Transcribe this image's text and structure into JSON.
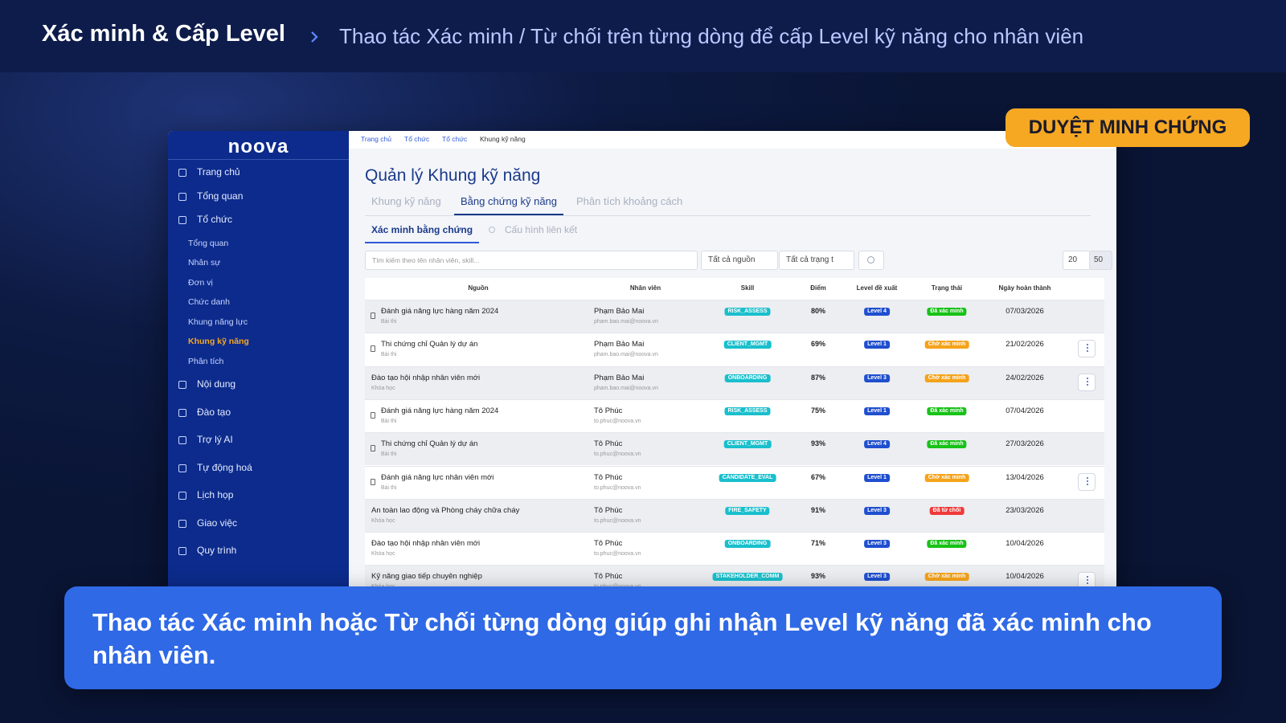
{
  "header": {
    "title": "Xác minh & Cấp Level",
    "subtitle": "Thao tác Xác minh / Từ chối trên từng dòng để cấp Level kỹ năng cho nhân viên"
  },
  "badge": "DUYỆT MINH CHỨNG",
  "app": {
    "logo": "noova",
    "sidebar": [
      {
        "label": "Trang chủ"
      },
      {
        "label": "Tổng quan"
      },
      {
        "label": "Tổ chức",
        "children": [
          {
            "label": "Tổng quan"
          },
          {
            "label": "Nhân sự"
          },
          {
            "label": "Đơn vị"
          },
          {
            "label": "Chức danh"
          },
          {
            "label": "Khung năng lực"
          },
          {
            "label": "Khung kỹ năng",
            "active": true
          },
          {
            "label": "Phân tích"
          }
        ]
      },
      {
        "label": "Nội dung"
      },
      {
        "label": "Đào tạo"
      },
      {
        "label": "Trợ lý AI"
      },
      {
        "label": "Tự động hoá"
      },
      {
        "label": "Lịch họp"
      },
      {
        "label": "Giao việc"
      },
      {
        "label": "Quy trình"
      }
    ],
    "breadcrumb": [
      "Trang chủ",
      "Tổ chức",
      "Tổ chức",
      "Khung kỹ năng"
    ],
    "page_title": "Quản lý Khung kỹ năng",
    "tabs": [
      {
        "label": "Khung kỹ năng"
      },
      {
        "label": "Bằng chứng kỹ năng",
        "active": true
      },
      {
        "label": "Phân tích khoảng cách"
      }
    ],
    "subtabs": [
      {
        "label": "Xác minh bằng chứng",
        "active": true
      },
      {
        "label": "Cấu hình liên kết"
      }
    ],
    "search_placeholder": "Tìm kiếm theo tên nhân viên, skill...",
    "filters": [
      "Tất cả nguồn",
      "Tất cả trạng t"
    ],
    "page_size": "20",
    "page_size_max": "50",
    "table": {
      "columns": [
        "Nguồn",
        "Nhân viên",
        "Skill",
        "Điểm",
        "Level đề xuất",
        "Trạng thái",
        "Ngày hoàn thành"
      ],
      "rows": [
        {
          "source": "Đánh giá năng lực hàng năm 2024",
          "source_type": "Bài thi",
          "icon": true,
          "employee": "Phạm Bảo Mai",
          "email": "pham.bao.mai@noova.vn",
          "skill": "RISK_ASSESS",
          "score": "80%",
          "level": "Level 4",
          "status": "Đã xác minh",
          "status_color": "#17c217",
          "date": "07/03/2026",
          "action": false
        },
        {
          "source": "Thi chứng chỉ Quản lý dự án",
          "source_type": "Bài thi",
          "icon": true,
          "employee": "Phạm Bảo Mai",
          "email": "pham.bao.mai@noova.vn",
          "skill": "CLIENT_MGMT",
          "score": "69%",
          "level": "Level 1",
          "status": "Chờ xác minh",
          "status_color": "#f5a31a",
          "date": "21/02/2026",
          "action": true
        },
        {
          "source": "Đào tạo hội nhập nhân viên mới",
          "source_type": "Khóa học",
          "icon": false,
          "employee": "Phạm Bảo Mai",
          "email": "pham.bao.mai@noova.vn",
          "skill": "ONBOARDING",
          "score": "87%",
          "level": "Level 3",
          "status": "Chờ xác minh",
          "status_color": "#f5a31a",
          "date": "24/02/2026",
          "action": true
        },
        {
          "source": "Đánh giá năng lực hàng năm 2024",
          "source_type": "Bài thi",
          "icon": true,
          "employee": "Tô Phúc",
          "email": "to.phuc@noova.vn",
          "skill": "RISK_ASSESS",
          "score": "75%",
          "level": "Level 1",
          "status": "Đã xác minh",
          "status_color": "#17c217",
          "date": "07/04/2026",
          "action": false
        },
        {
          "source": "Thi chứng chỉ Quản lý dự án",
          "source_type": "Bài thi",
          "icon": true,
          "employee": "Tô Phúc",
          "email": "to.phuc@noova.vn",
          "skill": "CLIENT_MGMT",
          "score": "93%",
          "level": "Level 4",
          "status": "Đã xác minh",
          "status_color": "#17c217",
          "date": "27/03/2026",
          "action": false
        },
        {
          "source": "Đánh giá năng lực nhân viên mới",
          "source_type": "Bài thi",
          "icon": true,
          "employee": "Tô Phúc",
          "email": "to.phuc@noova.vn",
          "skill": "CANDIDATE_EVAL",
          "score": "67%",
          "level": "Level 1",
          "status": "Chờ xác minh",
          "status_color": "#f5a31a",
          "date": "13/04/2026",
          "action": true
        },
        {
          "source": "An toàn lao động và Phòng cháy chữa cháy",
          "source_type": "Khóa học",
          "icon": false,
          "employee": "Tô Phúc",
          "email": "to.phuc@noova.vn",
          "skill": "FIRE_SAFETY",
          "score": "91%",
          "level": "Level 3",
          "status": "Đã từ chối",
          "status_color": "#ef3b3b",
          "date": "23/03/2026",
          "action": false
        },
        {
          "source": "Đào tạo hội nhập nhân viên mới",
          "source_type": "Khóa học",
          "icon": false,
          "employee": "Tô Phúc",
          "email": "to.phuc@noova.vn",
          "skill": "ONBOARDING",
          "score": "71%",
          "level": "Level 3",
          "status": "Đã xác minh",
          "status_color": "#17c217",
          "date": "10/04/2026",
          "action": false
        },
        {
          "source": "Kỹ năng giao tiếp chuyên nghiệp",
          "source_type": "Khóa học",
          "icon": false,
          "employee": "Tô Phúc",
          "email": "to.phuc@noova.vn",
          "skill": "STAKEHOLDER_COMM",
          "score": "93%",
          "level": "Level 3",
          "status": "Chờ xác minh",
          "status_color": "#f5a31a",
          "date": "10/04/2026",
          "action": true
        }
      ]
    }
  },
  "caption": "Thao tác Xác minh hoặc Từ chối từng dòng giúp ghi nhận Level kỹ năng đã xác minh cho nhân viên."
}
